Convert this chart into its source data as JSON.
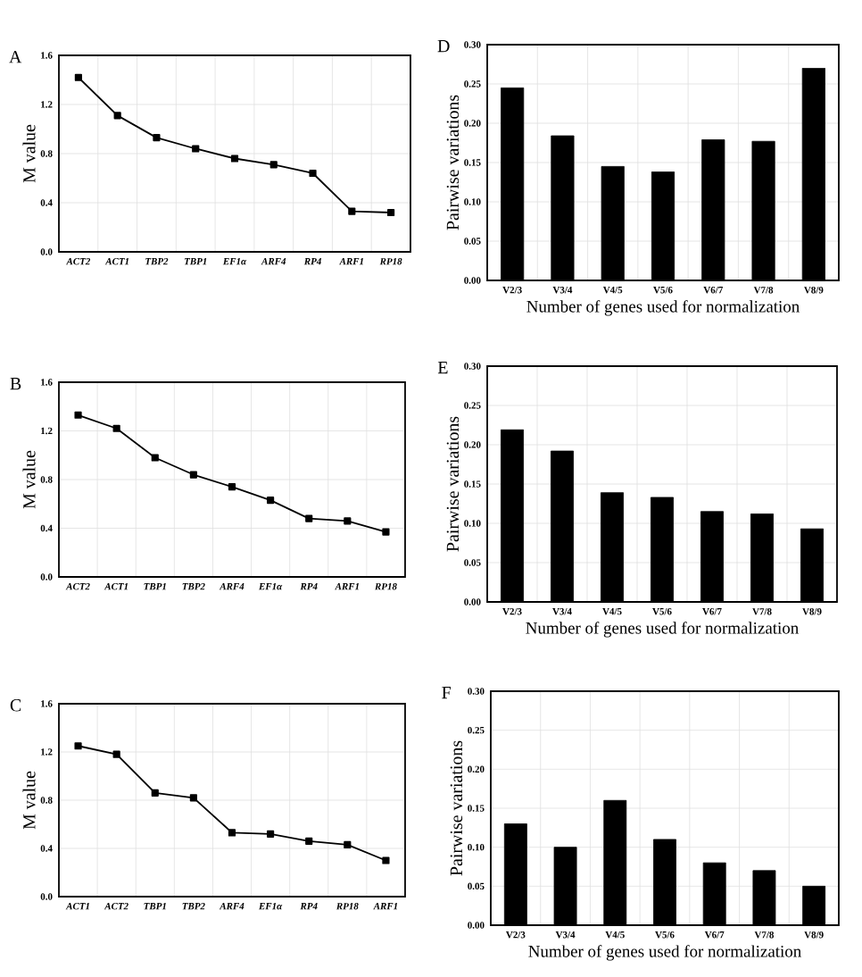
{
  "chart_data": [
    {
      "type": "line",
      "title": "A",
      "ylabel": "M value",
      "categories": [
        "ACT2",
        "ACT1",
        "TBP2",
        "TBP1",
        "EF1α",
        "ARF4",
        "RP4",
        "ARF1",
        "RP18"
      ],
      "values": [
        1.42,
        1.11,
        0.93,
        0.84,
        0.76,
        0.71,
        0.64,
        0.33,
        0.32
      ],
      "color": "#000000",
      "marker": "square",
      "ylim": [
        0,
        1.6
      ],
      "yticks": [
        {
          "value": 0,
          "label": "0.0"
        },
        {
          "value": 0.4,
          "label": "0.4"
        },
        {
          "value": 0.8,
          "label": "0.8"
        },
        {
          "value": 1.2,
          "label": "1.2"
        },
        {
          "value": 1.6,
          "label": "1.6"
        }
      ],
      "grid": true
    },
    {
      "type": "line",
      "title": "B",
      "ylabel": "M value",
      "categories": [
        "ACT2",
        "ACT1",
        "TBP1",
        "TBP2",
        "ARF4",
        "EF1α",
        "RP4",
        "ARF1",
        "RP18"
      ],
      "values": [
        1.33,
        1.22,
        0.98,
        0.84,
        0.74,
        0.63,
        0.48,
        0.46,
        0.37
      ],
      "color": "#000000",
      "marker": "square",
      "ylim": [
        0,
        1.6
      ],
      "yticks": [
        {
          "value": 0,
          "label": "0.0"
        },
        {
          "value": 0.4,
          "label": "0.4"
        },
        {
          "value": 0.8,
          "label": "0.8"
        },
        {
          "value": 1.2,
          "label": "1.2"
        },
        {
          "value": 1.6,
          "label": "1.6"
        }
      ],
      "grid": true
    },
    {
      "type": "line",
      "title": "C",
      "ylabel": "M value",
      "categories": [
        "ACT1",
        "ACT2",
        "TBP1",
        "TBP2",
        "ARF4",
        "EF1α",
        "RP4",
        "RP18",
        "ARF1"
      ],
      "values": [
        1.25,
        1.18,
        0.86,
        0.82,
        0.53,
        0.52,
        0.46,
        0.43,
        0.3
      ],
      "color": "#000000",
      "marker": "square",
      "ylim": [
        0,
        1.6
      ],
      "yticks": [
        {
          "value": 0,
          "label": "0.0"
        },
        {
          "value": 0.4,
          "label": "0.4"
        },
        {
          "value": 0.8,
          "label": "0.8"
        },
        {
          "value": 1.2,
          "label": "1.2"
        },
        {
          "value": 1.6,
          "label": "1.6"
        }
      ],
      "grid": true
    },
    {
      "type": "bar",
      "title": "D",
      "xlabel": "Number of genes used for normalization",
      "ylabel": "Pairwise variations",
      "categories": [
        "V2/3",
        "V3/4",
        "V4/5",
        "V5/6",
        "V6/7",
        "V7/8",
        "V8/9"
      ],
      "values": [
        0.245,
        0.184,
        0.145,
        0.138,
        0.179,
        0.177,
        0.27
      ],
      "color": "#000000",
      "ylim": [
        0,
        0.3
      ],
      "yticks": [
        {
          "value": 0,
          "label": "0.00"
        },
        {
          "value": 0.05,
          "label": "0.05"
        },
        {
          "value": 0.1,
          "label": "0.10"
        },
        {
          "value": 0.15,
          "label": "0.15"
        },
        {
          "value": 0.2,
          "label": "0.20"
        },
        {
          "value": 0.25,
          "label": "0.25"
        },
        {
          "value": 0.3,
          "label": "0.30"
        }
      ],
      "grid": true
    },
    {
      "type": "bar",
      "title": "E",
      "xlabel": "Number of genes used for normalization",
      "ylabel": "Pairwise variations",
      "categories": [
        "V2/3",
        "V3/4",
        "V4/5",
        "V5/6",
        "V6/7",
        "V7/8",
        "V8/9"
      ],
      "values": [
        0.219,
        0.192,
        0.139,
        0.133,
        0.115,
        0.112,
        0.093
      ],
      "color": "#000000",
      "ylim": [
        0,
        0.3
      ],
      "yticks": [
        {
          "value": 0,
          "label": "0.00"
        },
        {
          "value": 0.05,
          "label": "0.05"
        },
        {
          "value": 0.1,
          "label": "0.10"
        },
        {
          "value": 0.15,
          "label": "0.15"
        },
        {
          "value": 0.2,
          "label": "0.20"
        },
        {
          "value": 0.25,
          "label": "0.25"
        },
        {
          "value": 0.3,
          "label": "0.30"
        }
      ],
      "grid": true
    },
    {
      "type": "bar",
      "title": "F",
      "xlabel": "Number of genes used for normalization",
      "ylabel": "Pairwise variations",
      "categories": [
        "V2/3",
        "V3/4",
        "V4/5",
        "V5/6",
        "V6/7",
        "V7/8",
        "V8/9"
      ],
      "values": [
        0.13,
        0.1,
        0.16,
        0.11,
        0.08,
        0.07,
        0.05
      ],
      "color": "#000000",
      "ylim": [
        0,
        0.3
      ],
      "yticks": [
        {
          "value": 0,
          "label": "0.00"
        },
        {
          "value": 0.05,
          "label": "0.05"
        },
        {
          "value": 0.1,
          "label": "0.10"
        },
        {
          "value": 0.15,
          "label": "0.15"
        },
        {
          "value": 0.2,
          "label": "0.20"
        },
        {
          "value": 0.25,
          "label": "0.25"
        },
        {
          "value": 0.3,
          "label": "0.30"
        }
      ],
      "grid": true
    }
  ]
}
